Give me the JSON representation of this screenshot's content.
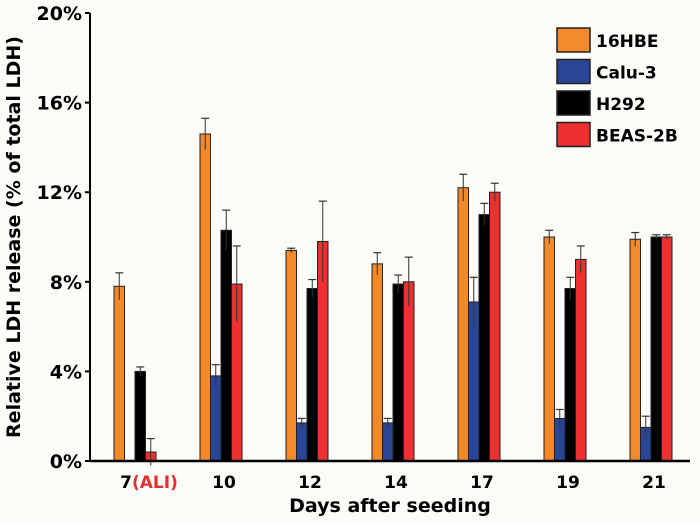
{
  "chart_data": {
    "type": "bar",
    "title": "",
    "xlabel": "Days after seeding",
    "ylabel": "Relative LDH release (% of total LDH)",
    "ylim": [
      0,
      20
    ],
    "yticks": [
      "0%",
      "4%",
      "8%",
      "12%",
      "16%",
      "20%"
    ],
    "categories": [
      "7",
      "10",
      "12",
      "14",
      "17",
      "19",
      "21"
    ],
    "category_annotation": {
      "category": "7",
      "text": "(ALI)",
      "color": "#e03030"
    },
    "legend_position": "top-right",
    "series": [
      {
        "name": "16HBE",
        "color": "#f28a2a",
        "values": [
          7.8,
          14.6,
          9.4,
          8.8,
          12.2,
          10.0,
          9.9
        ],
        "errors": [
          0.6,
          0.7,
          0.1,
          0.5,
          0.6,
          0.3,
          0.3
        ]
      },
      {
        "name": "Calu-3",
        "color": "#2a4596",
        "values": [
          0,
          3.8,
          1.7,
          1.7,
          7.1,
          1.9,
          1.5
        ],
        "errors": [
          0,
          0.5,
          0.2,
          0.2,
          1.1,
          0.4,
          0.5
        ]
      },
      {
        "name": "H292",
        "color": "#000000",
        "values": [
          4.0,
          10.3,
          7.7,
          7.9,
          11.0,
          7.7,
          10.0
        ],
        "errors": [
          0.2,
          0.9,
          0.4,
          0.4,
          0.5,
          0.5,
          0.1
        ]
      },
      {
        "name": "BEAS-2B",
        "color": "#ee3030",
        "values": [
          0.4,
          7.9,
          9.8,
          8.0,
          12.0,
          9.0,
          10.0
        ],
        "errors": [
          0.6,
          1.7,
          1.8,
          1.1,
          0.4,
          0.6,
          0.1
        ]
      }
    ]
  }
}
